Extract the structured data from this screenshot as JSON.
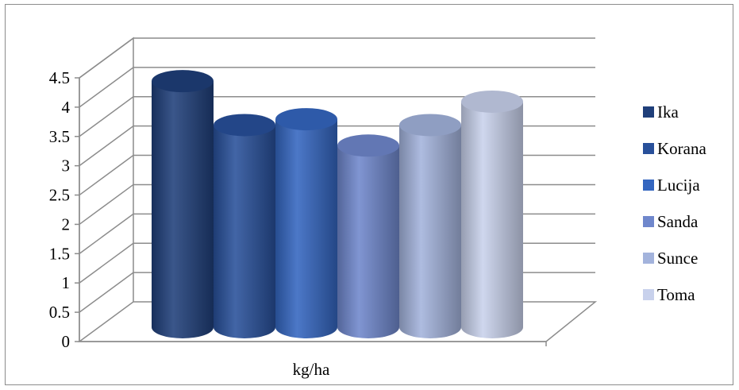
{
  "chart_data": {
    "type": "bar",
    "style": "3d-cylinder",
    "title": "",
    "xlabel": "",
    "ylabel": "",
    "categories": [
      "kg/ha"
    ],
    "series": [
      {
        "name": "Ika",
        "values": [
          4.2
        ],
        "color": "#1f3f7a"
      },
      {
        "name": "Korana",
        "values": [
          3.45
        ],
        "color": "#28509a"
      },
      {
        "name": "Lucija",
        "values": [
          3.55
        ],
        "color": "#3466c0"
      },
      {
        "name": "Sanda",
        "values": [
          3.1
        ],
        "color": "#6f87cc"
      },
      {
        "name": "Sunce",
        "values": [
          3.45
        ],
        "color": "#a3b3dc"
      },
      {
        "name": "Toma",
        "values": [
          3.85
        ],
        "color": "#c8d1ec"
      }
    ],
    "yticks": [
      "0",
      "0.5",
      "1",
      "1.5",
      "2",
      "2.5",
      "3",
      "3.5",
      "4",
      "4.5"
    ],
    "ylim": [
      0,
      4.5
    ],
    "grid": true,
    "legend_position": "right"
  }
}
